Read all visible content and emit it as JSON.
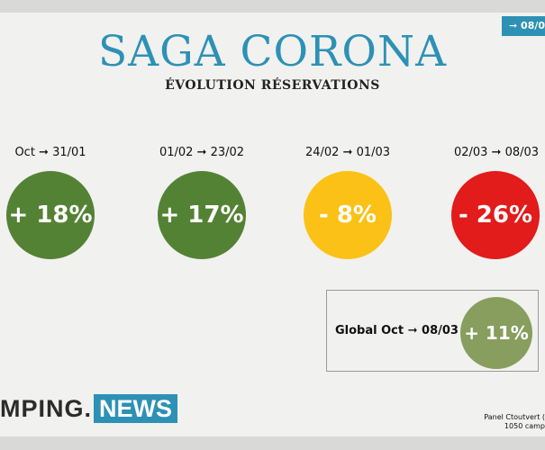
{
  "date_tab": "➞ 08/0",
  "title": "SAGA CORONA",
  "subtitle": "ÉVOLUTION RÉSERVATIONS",
  "periods": [
    {
      "label": "Oct ➞ 31/01",
      "value": "+ 18%",
      "color": "#548235"
    },
    {
      "label": "01/02 ➞ 23/02",
      "value": "+ 17%",
      "color": "#548235"
    },
    {
      "label": "24/02 ➞ 01/03",
      "value": "- 8%",
      "color": "#fbc116"
    },
    {
      "label": "02/03 ➞ 08/03",
      "value": "- 26%",
      "color": "#e21b1b"
    }
  ],
  "global": {
    "label": "Global Oct ➞ 08/03",
    "value": "+ 11%",
    "color": "#879e5f"
  },
  "logo": {
    "part1": "MPING",
    "part2": "NEWS",
    "dot": "."
  },
  "panel_note": {
    "line1": "Panel Ctoutvert (",
    "line2": "1050 camp"
  }
}
